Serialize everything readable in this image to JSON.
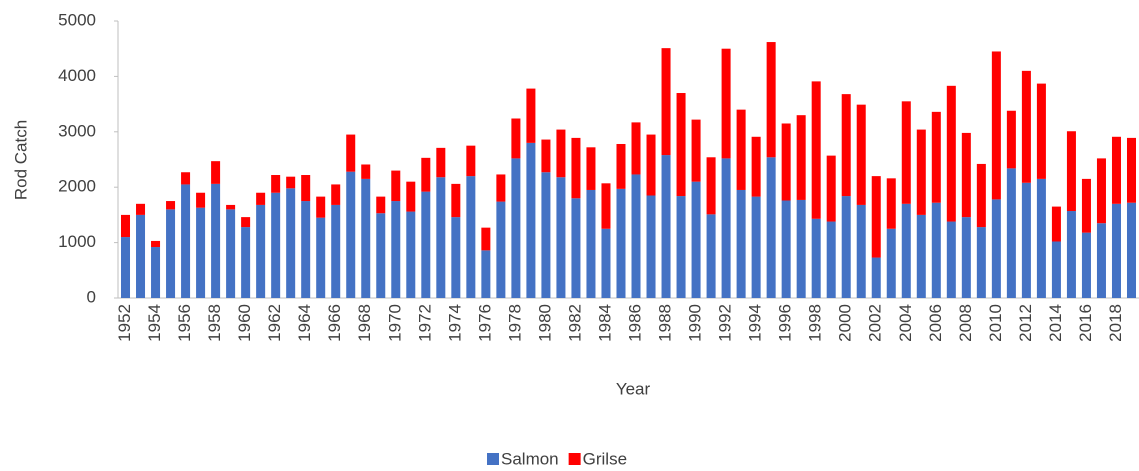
{
  "chart_data": {
    "type": "stacked-bar",
    "y_label": "Rod Catch",
    "x_label": "Year",
    "categories": [
      1952,
      null,
      1954,
      null,
      1956,
      null,
      1958,
      null,
      1960,
      null,
      1962,
      null,
      1964,
      null,
      1966,
      null,
      1968,
      null,
      1970,
      null,
      1972,
      null,
      1974,
      null,
      1976,
      null,
      1978,
      null,
      1980,
      null,
      1982,
      null,
      1984,
      null,
      1986,
      null,
      1988,
      null,
      1990,
      null,
      1992,
      null,
      1994,
      null,
      1996,
      null,
      1998,
      null,
      2000,
      null,
      2002,
      null,
      2004,
      null,
      2006,
      null,
      2008,
      null,
      2010,
      null,
      2012,
      null,
      2014,
      null,
      2016,
      null,
      2018,
      null
    ],
    "series": [
      {
        "name": "Salmon",
        "color": "#4472c4",
        "values": [
          1100,
          1500,
          920,
          1600,
          2050,
          1630,
          2060,
          1600,
          1280,
          1680,
          1900,
          1980,
          1750,
          1450,
          1680,
          2280,
          2150,
          1530,
          1750,
          1560,
          1920,
          2180,
          1460,
          2200,
          860,
          1740,
          2520,
          2800,
          2270,
          2180,
          1800,
          1950,
          1250,
          1970,
          2230,
          1850,
          2580,
          1840,
          2100,
          1510,
          2520,
          1950,
          1830,
          2540,
          1760,
          1770,
          1430,
          1380,
          1840,
          1680,
          730,
          1250,
          1700,
          1500,
          1720,
          1380,
          1460,
          1280,
          1780,
          2340,
          2080,
          2150,
          1020,
          1570,
          1180,
          1350,
          1700,
          1720
        ]
      },
      {
        "name": "Grilse",
        "color": "#ff0000",
        "values": [
          400,
          200,
          110,
          150,
          220,
          270,
          410,
          80,
          180,
          220,
          320,
          210,
          470,
          380,
          370,
          670,
          260,
          300,
          550,
          540,
          610,
          530,
          600,
          550,
          410,
          490,
          720,
          980,
          590,
          860,
          1090,
          770,
          820,
          810,
          940,
          1100,
          1930,
          1860,
          1120,
          1030,
          1980,
          1450,
          1080,
          2080,
          1390,
          1530,
          2480,
          1190,
          1840,
          1810,
          1470,
          910,
          1850,
          1540,
          1640,
          2450,
          1520,
          1140,
          2670,
          1040,
          2020,
          1720,
          630,
          1440,
          970,
          1170,
          1210,
          1170
        ]
      }
    ],
    "ylim": [
      0,
      5000
    ],
    "yticks": [
      0,
      1000,
      2000,
      3000,
      4000,
      5000
    ],
    "grid": false,
    "legend": "bottom"
  }
}
